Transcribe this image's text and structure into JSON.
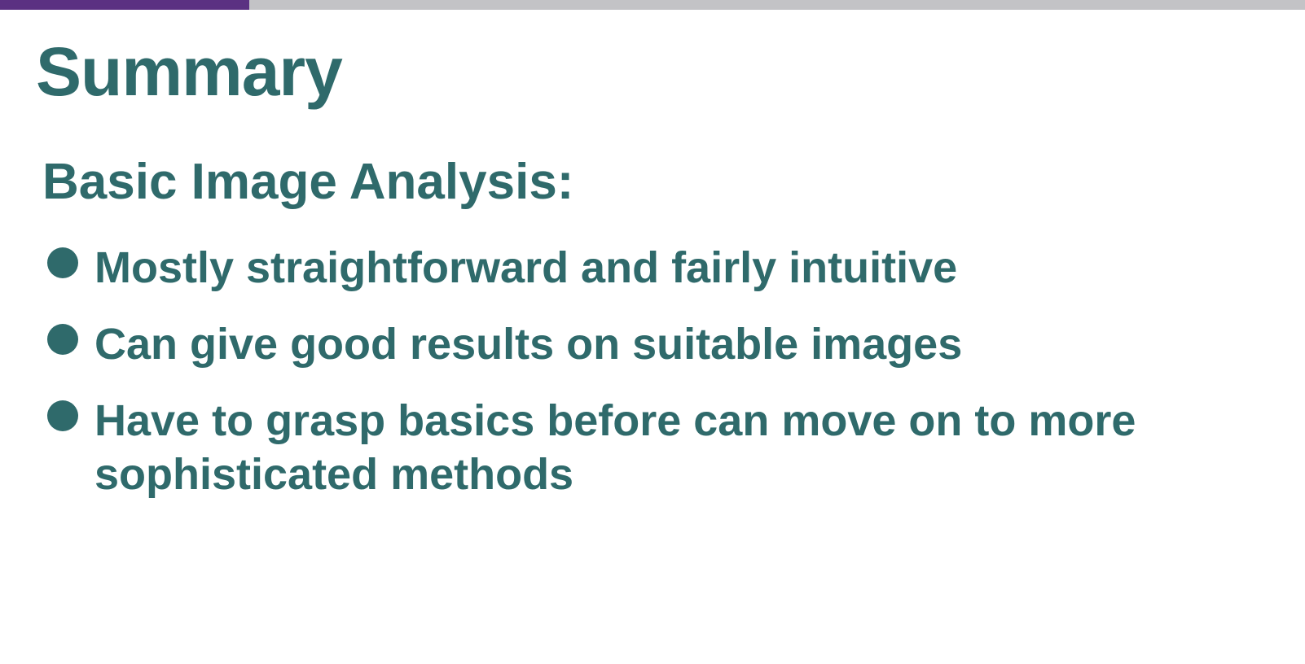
{
  "slide": {
    "title": "Summary",
    "subtitle": "Basic Image Analysis:",
    "bullets": [
      "Mostly straightforward and fairly intuitive",
      "Can give good results on suitable images",
      "Have to grasp basics before can move on to more sophisticated methods"
    ]
  },
  "colors": {
    "text": "#2f6a6b",
    "accent_bar": "#5b3182",
    "top_bar": "#c3c3c6",
    "background": "#ffffff"
  },
  "icons": {
    "bullet": "filled-circle-icon"
  }
}
